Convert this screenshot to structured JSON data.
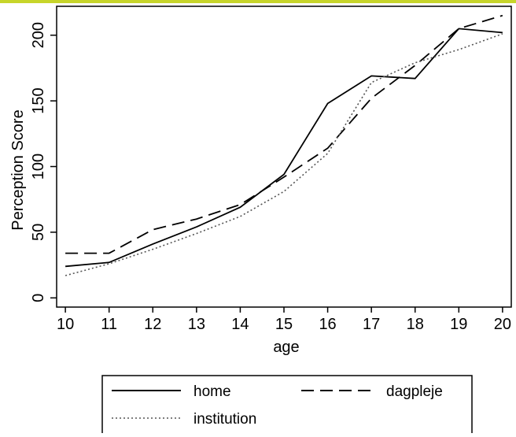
{
  "page": {
    "accent_color": "#c7d52a"
  },
  "chart_data": {
    "type": "line",
    "xlabel": "age",
    "ylabel": "Perception Score",
    "x": [
      10,
      11,
      12,
      13,
      14,
      15,
      16,
      17,
      18,
      19,
      20
    ],
    "xlim": [
      9.8,
      20.2
    ],
    "ylim": [
      -7,
      222
    ],
    "xticks": [
      "10",
      "11",
      "12",
      "13",
      "14",
      "15",
      "16",
      "17",
      "18",
      "19",
      "20"
    ],
    "yticks": [
      "0",
      "50",
      "100",
      "150",
      "200"
    ],
    "grid": false,
    "legend_position": "bottom",
    "series": [
      {
        "name": "home",
        "style": "solid",
        "values": [
          24,
          27,
          41,
          54,
          69,
          94,
          148,
          169,
          167,
          205,
          202
        ]
      },
      {
        "name": "dagpleje",
        "style": "dashed",
        "values": [
          34,
          34,
          52,
          60,
          71,
          92,
          114,
          152,
          177,
          205,
          215
        ]
      },
      {
        "name": "institution",
        "style": "dotted",
        "values": [
          17,
          26,
          37,
          49,
          62,
          81,
          110,
          164,
          179,
          189,
          201
        ]
      }
    ]
  }
}
